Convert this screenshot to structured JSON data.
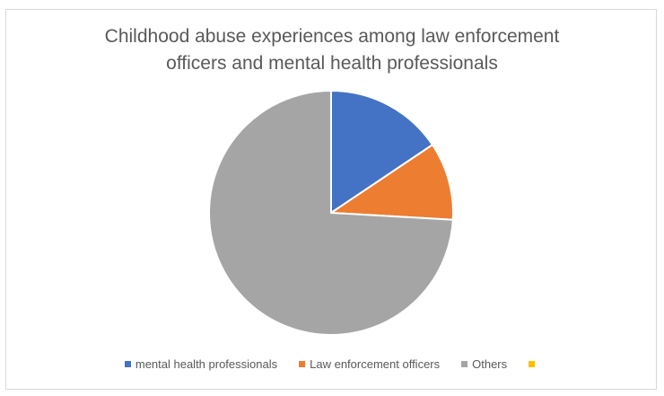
{
  "chart_data": {
    "type": "pie",
    "title_lines": [
      "Childhood abuse experiences among law enforcement",
      "officers and mental health professionals"
    ],
    "categories": [
      "mental health professionals",
      "Law enforcement officers",
      "Others",
      ""
    ],
    "values": [
      15.6,
      10.3,
      74.1,
      0
    ],
    "colors": [
      "#4472c4",
      "#ed7d31",
      "#a5a5a5",
      "#ffc000"
    ],
    "start_angle_deg": 0,
    "direction": "clockwise",
    "legend_position": "bottom",
    "data_labels": false
  }
}
